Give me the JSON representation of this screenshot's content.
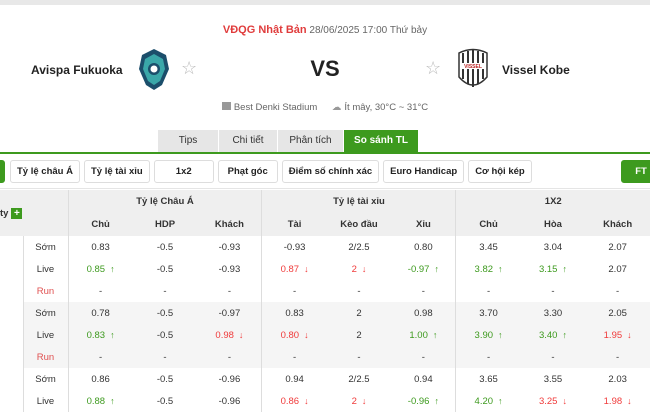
{
  "match": {
    "league": "VĐQG Nhật Bản",
    "datetime": "28/06/2025 17:00 Thứ bảy",
    "home_team": "Avispa Fukuoka",
    "away_team": "Vissel Kobe",
    "vs": "VS",
    "stadium": "Best Denki Stadium",
    "weather": "Ít mây, 30°C ~ 31°C",
    "away_logo_text": "VISSEL"
  },
  "tabs": [
    {
      "label": "Tips"
    },
    {
      "label": "Chi tiết"
    },
    {
      "label": "Phân tích"
    },
    {
      "label": "So sánh TL",
      "active": true
    }
  ],
  "filters": [
    "Tỷ lệ châu Á",
    "Tỷ lệ tài xỉu",
    "1x2",
    "Phạt góc",
    "Điểm số chính xác",
    "Euro Handicap",
    "Cơ hội kép"
  ],
  "ft_label": "FT",
  "table": {
    "company_header": "ty",
    "groups": [
      "Tỷ lệ Châu Á",
      "Tỷ lệ tài xỉu",
      "1X2"
    ],
    "columns": [
      "Chủ",
      "HDP",
      "Khách",
      "Tài",
      "Kèo đầu",
      "Xỉu",
      "Chủ",
      "Hòa",
      "Khách"
    ],
    "rows": [
      {
        "label": "Sớm",
        "cells": [
          {
            "v": "0.83"
          },
          {
            "v": "-0.5"
          },
          {
            "v": "-0.93"
          },
          {
            "v": "-0.93"
          },
          {
            "v": "2/2.5"
          },
          {
            "v": "0.80"
          },
          {
            "v": "3.45"
          },
          {
            "v": "3.04"
          },
          {
            "v": "2.07"
          }
        ]
      },
      {
        "label": "Live",
        "cells": [
          {
            "v": "0.85",
            "c": "up"
          },
          {
            "v": "-0.5"
          },
          {
            "v": "-0.93"
          },
          {
            "v": "0.87",
            "c": "down"
          },
          {
            "v": "2",
            "c": "down"
          },
          {
            "v": "-0.97",
            "c": "up"
          },
          {
            "v": "3.82",
            "c": "up"
          },
          {
            "v": "3.15",
            "c": "up"
          },
          {
            "v": "2.07"
          }
        ]
      },
      {
        "label": "Run",
        "run": true,
        "cells": [
          {
            "v": "-"
          },
          {
            "v": "-"
          },
          {
            "v": "-"
          },
          {
            "v": "-"
          },
          {
            "v": "-"
          },
          {
            "v": "-"
          },
          {
            "v": "-"
          },
          {
            "v": "-"
          },
          {
            "v": "-"
          }
        ]
      },
      {
        "label": "Sớm",
        "cells": [
          {
            "v": "0.78"
          },
          {
            "v": "-0.5"
          },
          {
            "v": "-0.97"
          },
          {
            "v": "0.83"
          },
          {
            "v": "2"
          },
          {
            "v": "0.98"
          },
          {
            "v": "3.70"
          },
          {
            "v": "3.30"
          },
          {
            "v": "2.05"
          }
        ]
      },
      {
        "label": "Live",
        "cells": [
          {
            "v": "0.83",
            "c": "up"
          },
          {
            "v": "-0.5"
          },
          {
            "v": "0.98",
            "c": "down"
          },
          {
            "v": "0.80",
            "c": "down"
          },
          {
            "v": "2"
          },
          {
            "v": "1.00",
            "c": "up"
          },
          {
            "v": "3.90",
            "c": "up"
          },
          {
            "v": "3.40",
            "c": "up"
          },
          {
            "v": "1.95",
            "c": "down"
          }
        ]
      },
      {
        "label": "Run",
        "run": true,
        "cells": [
          {
            "v": "-"
          },
          {
            "v": "-"
          },
          {
            "v": "-"
          },
          {
            "v": "-"
          },
          {
            "v": "-"
          },
          {
            "v": "-"
          },
          {
            "v": "-"
          },
          {
            "v": "-"
          },
          {
            "v": "-"
          }
        ]
      },
      {
        "label": "Sớm",
        "cells": [
          {
            "v": "0.86"
          },
          {
            "v": "-0.5"
          },
          {
            "v": "-0.96"
          },
          {
            "v": "0.94"
          },
          {
            "v": "2/2.5"
          },
          {
            "v": "0.94"
          },
          {
            "v": "3.65"
          },
          {
            "v": "3.55"
          },
          {
            "v": "2.03"
          }
        ]
      },
      {
        "label": "Live",
        "cells": [
          {
            "v": "0.88",
            "c": "up"
          },
          {
            "v": "-0.5"
          },
          {
            "v": "-0.96"
          },
          {
            "v": "0.86",
            "c": "down"
          },
          {
            "v": "2",
            "c": "down"
          },
          {
            "v": "-0.96",
            "c": "up"
          },
          {
            "v": "4.20",
            "c": "up"
          },
          {
            "v": "3.25",
            "c": "down"
          },
          {
            "v": "1.98",
            "c": "down"
          }
        ]
      }
    ]
  },
  "colors": {
    "accent": "#3d9a1e",
    "up": "#3d9a1e",
    "down": "#f03a3a",
    "league": "#e03c3c"
  }
}
